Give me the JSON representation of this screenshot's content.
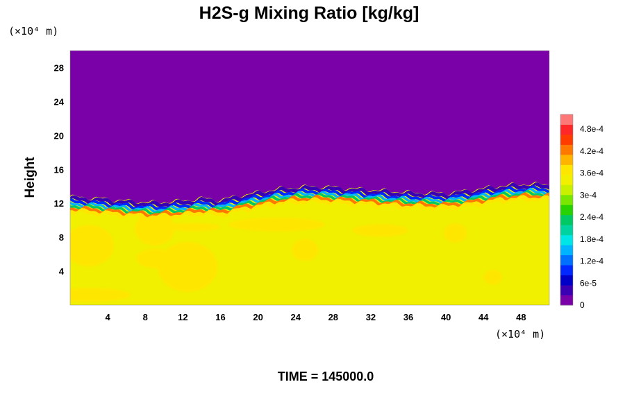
{
  "chart_data": {
    "type": "heatmap",
    "title": "H2S-g Mixing Ratio [kg/kg]",
    "ylabel": "Height",
    "x_unit_label": "(×10⁴ m)",
    "y_unit_label": "(×10⁴ m)",
    "xlim": [
      0,
      51
    ],
    "ylim": [
      0,
      30
    ],
    "x_ticks": [
      4,
      8,
      12,
      16,
      20,
      24,
      28,
      32,
      36,
      40,
      44,
      48
    ],
    "y_ticks": [
      4,
      8,
      12,
      16,
      20,
      24,
      28
    ],
    "colorbar": {
      "range": [
        0,
        0.00052
      ],
      "tick_labels": [
        "0",
        "6e-5",
        "1.2e-4",
        "1.8e-4",
        "2.4e-4",
        "3e-4",
        "3.6e-4",
        "4.2e-4",
        "4.8e-4"
      ],
      "tick_values": [
        0,
        6e-05,
        0.00012,
        0.00018,
        0.00024,
        0.0003,
        0.00036,
        0.00042,
        0.00048
      ],
      "colors": [
        "#7a00a8",
        "#3c00b4",
        "#0000c8",
        "#0028ff",
        "#0070ff",
        "#00b4ff",
        "#00e6e6",
        "#00d2a0",
        "#00c864",
        "#28d200",
        "#78e600",
        "#c8f000",
        "#f0f000",
        "#ffe600",
        "#ffb400",
        "#ff7800",
        "#ff3c00",
        "#ff2828",
        "#ff7878"
      ]
    },
    "field": {
      "background_value": 0.000335,
      "upper_value": 0,
      "interface_height": [
        12.5,
        12.3,
        12.0,
        11.8,
        12.0,
        12.3,
        12.1,
        12.6,
        13.0,
        13.4,
        13.6,
        13.7,
        13.6,
        13.3,
        13.0,
        12.9,
        13.3,
        13.8,
        14.0,
        13.9
      ],
      "interface_x": [
        0,
        3,
        6,
        9,
        12,
        14,
        16,
        18,
        20,
        22,
        24,
        26,
        28,
        32,
        36,
        40,
        43,
        46,
        49,
        51
      ],
      "plume_blobs_center_value": 0.00036,
      "plume_blobs": [
        [
          12.5,
          4.5
        ],
        [
          25,
          6.5
        ],
        [
          41,
          8.5
        ],
        [
          45,
          3.3
        ],
        [
          2,
          7
        ],
        [
          9,
          9
        ]
      ],
      "peak_band_value": 0.00044
    },
    "time_label": "TIME = 145000.0"
  }
}
